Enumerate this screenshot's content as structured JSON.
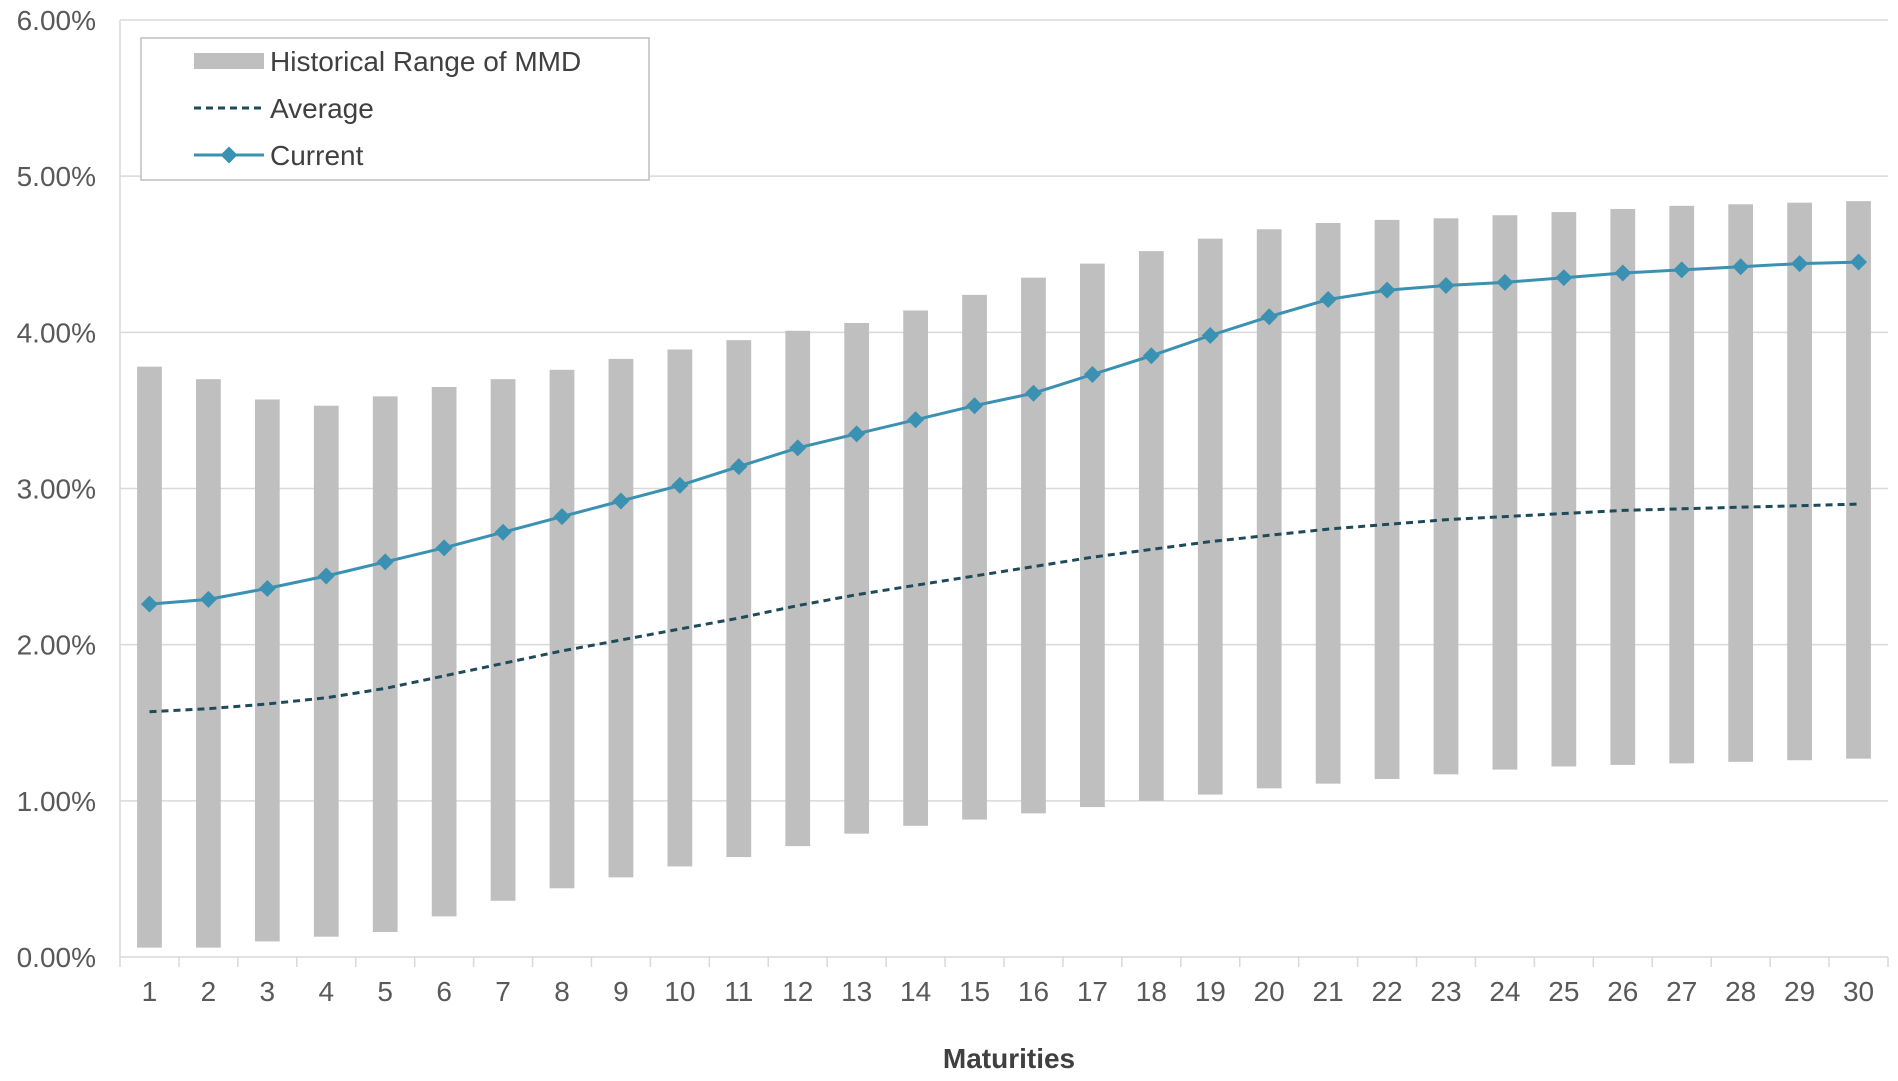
{
  "chart_data": {
    "type": "line",
    "title": "",
    "xlabel": "Maturities",
    "ylabel": "",
    "categories": [
      "1",
      "2",
      "3",
      "4",
      "5",
      "6",
      "7",
      "8",
      "9",
      "10",
      "11",
      "12",
      "13",
      "14",
      "15",
      "16",
      "17",
      "18",
      "19",
      "20",
      "21",
      "22",
      "23",
      "24",
      "25",
      "26",
      "27",
      "28",
      "29",
      "30"
    ],
    "ylim": [
      0,
      0.06
    ],
    "yticks": [
      0,
      0.01,
      0.02,
      0.03,
      0.04,
      0.05,
      0.06
    ],
    "ytick_labels": [
      "0.00%",
      "1.00%",
      "2.00%",
      "3.00%",
      "4.00%",
      "5.00%",
      "6.00%"
    ],
    "grid": "horizontal",
    "legend_position": "top-left",
    "series": [
      {
        "name": "Historical Range of MMD",
        "kind": "range-bar",
        "color": "#bfbfbf",
        "low": [
          0.0006,
          0.0006,
          0.001,
          0.0013,
          0.0016,
          0.0026,
          0.0036,
          0.0044,
          0.0051,
          0.0058,
          0.0064,
          0.0071,
          0.0079,
          0.0084,
          0.0088,
          0.0092,
          0.0096,
          0.01,
          0.0104,
          0.0108,
          0.0111,
          0.0114,
          0.0117,
          0.012,
          0.0122,
          0.0123,
          0.0124,
          0.0125,
          0.0126,
          0.0127
        ],
        "high": [
          0.0378,
          0.037,
          0.0357,
          0.0353,
          0.0359,
          0.0365,
          0.037,
          0.0376,
          0.0383,
          0.0389,
          0.0395,
          0.0401,
          0.0406,
          0.0414,
          0.0424,
          0.0435,
          0.0444,
          0.0452,
          0.046,
          0.0466,
          0.047,
          0.0472,
          0.0473,
          0.0475,
          0.0477,
          0.0479,
          0.0481,
          0.0482,
          0.0483,
          0.0484
        ]
      },
      {
        "name": "Average",
        "kind": "dashed-line",
        "color": "#1f4a5a",
        "values": [
          0.0157,
          0.0159,
          0.0162,
          0.0166,
          0.0172,
          0.018,
          0.0188,
          0.0196,
          0.0203,
          0.021,
          0.0217,
          0.0225,
          0.0232,
          0.0238,
          0.0244,
          0.025,
          0.0256,
          0.0261,
          0.0266,
          0.027,
          0.0274,
          0.0277,
          0.028,
          0.0282,
          0.0284,
          0.0286,
          0.0287,
          0.0288,
          0.0289,
          0.029
        ]
      },
      {
        "name": "Current",
        "kind": "line-marker",
        "color": "#3a91b2",
        "values": [
          0.0226,
          0.0229,
          0.0236,
          0.0244,
          0.0253,
          0.0262,
          0.0272,
          0.0282,
          0.0292,
          0.0302,
          0.0314,
          0.0326,
          0.0335,
          0.0344,
          0.0353,
          0.0361,
          0.0373,
          0.0385,
          0.0398,
          0.041,
          0.0421,
          0.0427,
          0.043,
          0.0432,
          0.0435,
          0.0438,
          0.044,
          0.0442,
          0.0444,
          0.0445
        ]
      }
    ],
    "colors": {
      "axis": "#d9d9d9",
      "grid": "#d9d9d9",
      "legend_border": "#bfbfbf"
    }
  }
}
